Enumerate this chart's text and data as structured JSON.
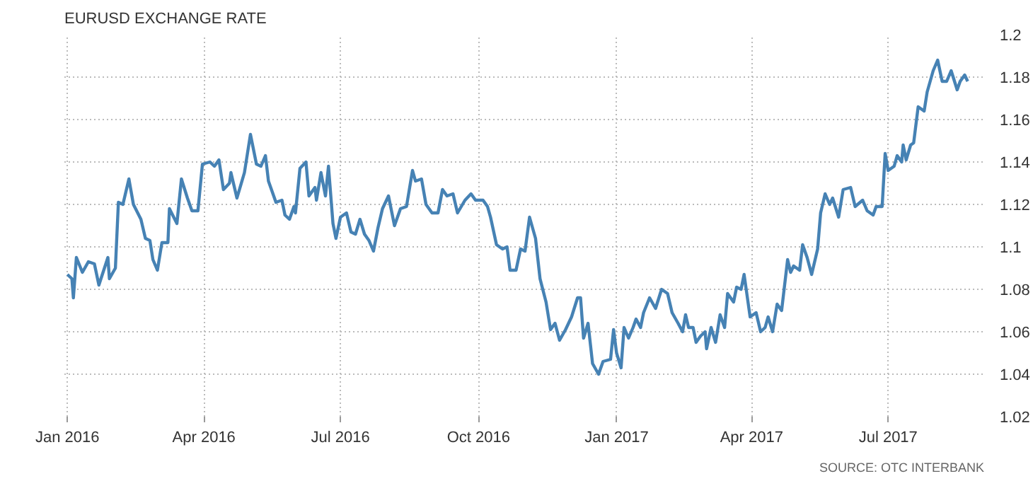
{
  "chart_data": {
    "type": "line",
    "title": "EURUSD EXCHANGE RATE",
    "annotations": [
      "SOURCE: OTC INTERBANK"
    ],
    "x": [
      "2016-01-01",
      "2016-01-04",
      "2016-01-05",
      "2016-01-07",
      "2016-01-11",
      "2016-01-15",
      "2016-01-19",
      "2016-01-22",
      "2016-01-28",
      "2016-01-29",
      "2016-02-02",
      "2016-02-04",
      "2016-02-07",
      "2016-02-11",
      "2016-02-14",
      "2016-02-19",
      "2016-02-22",
      "2016-02-25",
      "2016-02-27",
      "2016-03-01",
      "2016-03-04",
      "2016-03-08",
      "2016-03-09",
      "2016-03-14",
      "2016-03-17",
      "2016-03-21",
      "2016-03-24",
      "2016-03-28",
      "2016-03-31",
      "2016-04-05",
      "2016-04-08",
      "2016-04-11",
      "2016-04-14",
      "2016-04-18",
      "2016-04-19",
      "2016-04-23",
      "2016-04-28",
      "2016-04-30",
      "2016-05-02",
      "2016-05-06",
      "2016-05-09",
      "2016-05-12",
      "2016-05-14",
      "2016-05-19",
      "2016-05-23",
      "2016-05-25",
      "2016-05-28",
      "2016-05-31",
      "2016-06-01",
      "2016-06-04",
      "2016-06-08",
      "2016-06-10",
      "2016-06-14",
      "2016-06-15",
      "2016-06-18",
      "2016-06-21",
      "2016-06-23",
      "2016-06-26",
      "2016-06-28",
      "2016-07-01",
      "2016-07-05",
      "2016-07-08",
      "2016-07-11",
      "2016-07-14",
      "2016-07-17",
      "2016-07-20",
      "2016-07-23",
      "2016-07-26",
      "2016-07-29",
      "2016-08-02",
      "2016-08-06",
      "2016-08-10",
      "2016-08-14",
      "2016-08-18",
      "2016-08-20",
      "2016-08-24",
      "2016-08-27",
      "2016-08-31",
      "2016-09-04",
      "2016-09-07",
      "2016-09-10",
      "2016-09-14",
      "2016-09-17",
      "2016-09-22",
      "2016-09-26",
      "2016-09-29",
      "2016-10-04",
      "2016-10-07",
      "2016-10-09",
      "2016-10-13",
      "2016-10-17",
      "2016-10-20",
      "2016-10-22",
      "2016-10-26",
      "2016-10-29",
      "2016-11-01",
      "2016-11-04",
      "2016-11-08",
      "2016-11-11",
      "2016-11-15",
      "2016-11-18",
      "2016-11-21",
      "2016-11-24",
      "2016-11-28",
      "2016-11-30",
      "2016-12-02",
      "2016-12-06",
      "2016-12-08",
      "2016-12-10",
      "2016-12-13",
      "2016-12-16",
      "2016-12-20",
      "2016-12-23",
      "2016-12-28",
      "2016-12-30",
      "2017-01-01",
      "2017-01-04",
      "2017-01-06",
      "2017-01-09",
      "2017-01-12",
      "2017-01-14",
      "2017-01-17",
      "2017-01-19",
      "2017-01-23",
      "2017-01-27",
      "2017-01-31",
      "2017-02-04",
      "2017-02-07",
      "2017-02-11",
      "2017-02-14",
      "2017-02-16",
      "2017-02-18",
      "2017-02-21",
      "2017-02-23",
      "2017-02-26",
      "2017-03-01",
      "2017-03-02",
      "2017-03-05",
      "2017-03-08",
      "2017-03-11",
      "2017-03-14",
      "2017-03-16",
      "2017-03-20",
      "2017-03-22",
      "2017-03-25",
      "2017-03-27",
      "2017-03-31",
      "2017-04-04",
      "2017-04-07",
      "2017-04-10",
      "2017-04-12",
      "2017-04-15",
      "2017-04-18",
      "2017-04-21",
      "2017-04-25",
      "2017-04-27",
      "2017-04-29",
      "2017-05-03",
      "2017-05-05",
      "2017-05-08",
      "2017-05-11",
      "2017-05-15",
      "2017-05-17",
      "2017-05-20",
      "2017-05-23",
      "2017-05-25",
      "2017-05-29",
      "2017-06-01",
      "2017-06-06",
      "2017-06-09",
      "2017-06-14",
      "2017-06-17",
      "2017-06-21",
      "2017-06-23",
      "2017-06-27",
      "2017-06-29",
      "2017-07-01",
      "2017-07-05",
      "2017-07-07",
      "2017-07-10",
      "2017-07-11",
      "2017-07-13",
      "2017-07-16",
      "2017-07-18",
      "2017-07-21",
      "2017-07-25",
      "2017-07-27",
      "2017-07-31",
      "2017-08-03",
      "2017-08-06",
      "2017-08-09",
      "2017-08-12",
      "2017-08-16",
      "2017-08-18",
      "2017-08-21",
      "2017-08-23"
    ],
    "series": [
      {
        "color": "#4682b4",
        "values": [
          1.087,
          1.085,
          1.076,
          1.095,
          1.088,
          1.093,
          1.092,
          1.082,
          1.095,
          1.085,
          1.09,
          1.121,
          1.12,
          1.132,
          1.12,
          1.113,
          1.104,
          1.103,
          1.094,
          1.089,
          1.102,
          1.102,
          1.118,
          1.111,
          1.132,
          1.123,
          1.117,
          1.117,
          1.139,
          1.14,
          1.138,
          1.141,
          1.127,
          1.13,
          1.135,
          1.123,
          1.135,
          1.144,
          1.153,
          1.139,
          1.138,
          1.143,
          1.131,
          1.121,
          1.122,
          1.115,
          1.113,
          1.119,
          1.116,
          1.137,
          1.14,
          1.124,
          1.128,
          1.122,
          1.135,
          1.124,
          1.138,
          1.111,
          1.104,
          1.114,
          1.116,
          1.107,
          1.106,
          1.113,
          1.106,
          1.103,
          1.098,
          1.109,
          1.118,
          1.124,
          1.11,
          1.118,
          1.119,
          1.136,
          1.131,
          1.132,
          1.12,
          1.116,
          1.116,
          1.127,
          1.124,
          1.125,
          1.116,
          1.122,
          1.125,
          1.122,
          1.122,
          1.119,
          1.114,
          1.101,
          1.099,
          1.1,
          1.089,
          1.089,
          1.099,
          1.098,
          1.114,
          1.104,
          1.085,
          1.074,
          1.061,
          1.064,
          1.056,
          1.061,
          1.064,
          1.067,
          1.076,
          1.076,
          1.057,
          1.064,
          1.045,
          1.04,
          1.046,
          1.047,
          1.061,
          1.05,
          1.043,
          1.062,
          1.057,
          1.062,
          1.066,
          1.062,
          1.069,
          1.076,
          1.071,
          1.08,
          1.078,
          1.069,
          1.064,
          1.06,
          1.068,
          1.062,
          1.062,
          1.055,
          1.058,
          1.06,
          1.052,
          1.062,
          1.055,
          1.068,
          1.062,
          1.078,
          1.074,
          1.081,
          1.08,
          1.087,
          1.067,
          1.069,
          1.06,
          1.062,
          1.067,
          1.06,
          1.073,
          1.07,
          1.094,
          1.088,
          1.091,
          1.089,
          1.101,
          1.095,
          1.087,
          1.099,
          1.116,
          1.125,
          1.12,
          1.123,
          1.114,
          1.127,
          1.128,
          1.119,
          1.122,
          1.117,
          1.115,
          1.119,
          1.119,
          1.144,
          1.136,
          1.138,
          1.143,
          1.14,
          1.148,
          1.141,
          1.148,
          1.149,
          1.166,
          1.164,
          1.173,
          1.183,
          1.188,
          1.178,
          1.178,
          1.183,
          1.174,
          1.178,
          1.181,
          1.178
        ]
      }
    ],
    "xlim": [
      "2015-12-30",
      "2017-09-03"
    ],
    "xticks": [
      {
        "value": "2016-01-01",
        "label": "Jan 2016"
      },
      {
        "value": "2016-04-01",
        "label": "Apr 2016"
      },
      {
        "value": "2016-07-01",
        "label": "Jul 2016"
      },
      {
        "value": "2016-10-01",
        "label": "Oct 2016"
      },
      {
        "value": "2017-01-01",
        "label": "Jan 2017"
      },
      {
        "value": "2017-04-01",
        "label": "Apr 2017"
      },
      {
        "value": "2017-07-01",
        "label": "Jul 2017"
      }
    ],
    "ylim": [
      1.02,
      1.2
    ],
    "yticks": [
      1.02,
      1.04,
      1.06,
      1.08,
      1.1,
      1.12,
      1.14,
      1.16,
      1.18,
      1.2
    ],
    "grid": true,
    "line_style": "solid"
  }
}
